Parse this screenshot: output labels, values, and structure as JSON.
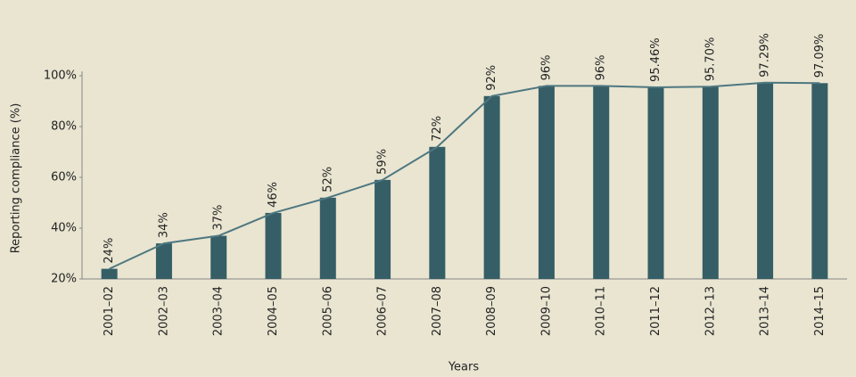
{
  "chart_data": {
    "type": "bar_line",
    "x_label": "Years",
    "y_label": "Reporting compliance (%)",
    "categories": [
      "2001–02",
      "2002–03",
      "2003–04",
      "2004–05",
      "2005–06",
      "2006–07",
      "2007–08",
      "2008–09",
      "2009–10",
      "2010–11",
      "2011–12",
      "2012–13",
      "2013–14",
      "2014–15"
    ],
    "values": [
      24,
      34,
      37,
      46,
      52,
      59,
      72,
      92,
      96,
      96,
      95.46,
      95.7,
      97.29,
      97.09
    ],
    "value_labels": [
      "24%",
      "34%",
      "37%",
      "46%",
      "52%",
      "59%",
      "72%",
      "92%",
      "96%",
      "96%",
      "95.46%",
      "95.70%",
      "97.29%",
      "97.09%"
    ],
    "color": "#355e66",
    "line_color": "#4e7780",
    "ylim": [
      20,
      100
    ],
    "yticks": [
      {
        "value": 20,
        "label": "20%"
      },
      {
        "value": 40,
        "label": "40%"
      },
      {
        "value": 60,
        "label": "60%"
      },
      {
        "value": 80,
        "label": "80%"
      },
      {
        "value": 100,
        "label": "100%"
      }
    ]
  }
}
